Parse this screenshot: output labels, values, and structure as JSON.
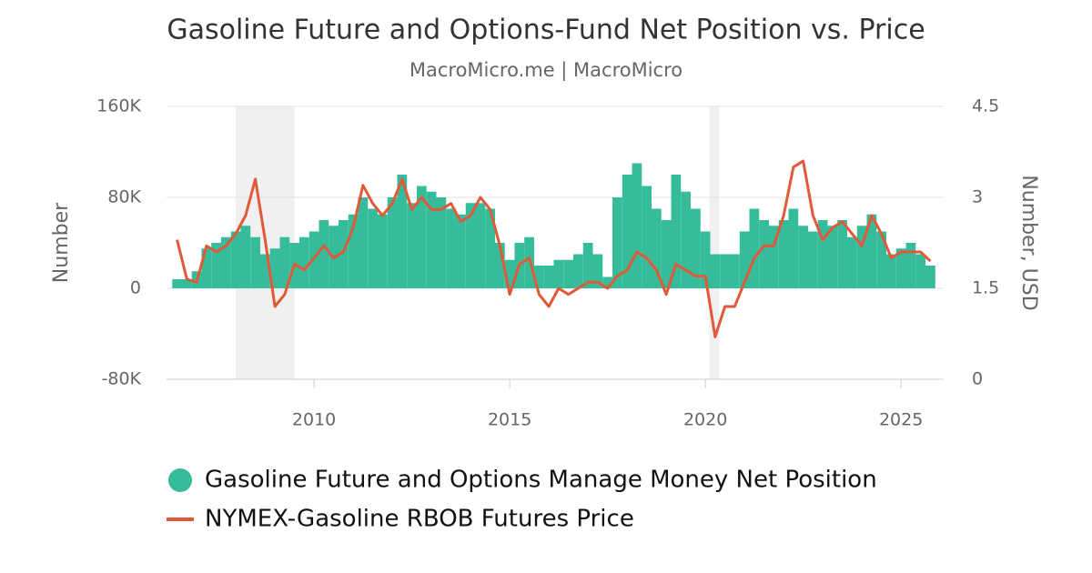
{
  "chart_data": {
    "type": "bar-line",
    "title": "Gasoline Future and Options-Fund Net Position vs. Price",
    "subtitle": "MacroMicro.me | MacroMicro",
    "y_label": "Number",
    "y2_label": "Number, USD",
    "xlim": [
      2006.23,
      2026.09
    ],
    "xticks": [
      2010,
      2015,
      2020,
      2025
    ],
    "ylim": [
      -80000,
      160000
    ],
    "yticks": [
      {
        "value": -80000,
        "label": "-80K"
      },
      0,
      {
        "value": 80000,
        "label": "80K"
      },
      {
        "value": 160000,
        "label": "160K"
      }
    ],
    "y2lim": [
      0,
      4.5
    ],
    "y2ticks": [
      0,
      1.5,
      3,
      4.5
    ],
    "grid": true,
    "shaded_regions": [
      {
        "x0": 2008.0,
        "x1": 2009.5
      },
      {
        "x0": 2020.1,
        "x1": 2020.35
      }
    ],
    "x": [
      2006.5,
      2006.75,
      2007.0,
      2007.25,
      2007.5,
      2007.75,
      2008.0,
      2008.25,
      2008.5,
      2008.75,
      2009.0,
      2009.25,
      2009.5,
      2009.75,
      2010.0,
      2010.25,
      2010.5,
      2010.75,
      2011.0,
      2011.25,
      2011.5,
      2011.75,
      2012.0,
      2012.25,
      2012.5,
      2012.75,
      2013.0,
      2013.25,
      2013.5,
      2013.75,
      2014.0,
      2014.25,
      2014.5,
      2014.75,
      2015.0,
      2015.25,
      2015.5,
      2015.75,
      2016.0,
      2016.25,
      2016.5,
      2016.75,
      2017.0,
      2017.25,
      2017.5,
      2017.75,
      2018.0,
      2018.25,
      2018.5,
      2018.75,
      2019.0,
      2019.25,
      2019.5,
      2019.75,
      2020.0,
      2020.25,
      2020.5,
      2020.75,
      2021.0,
      2021.25,
      2021.5,
      2021.75,
      2022.0,
      2022.25,
      2022.5,
      2022.75,
      2023.0,
      2023.25,
      2023.5,
      2023.75,
      2024.0,
      2024.25,
      2024.5,
      2024.75,
      2025.0,
      2025.25,
      2025.5,
      2025.75
    ],
    "series": [
      {
        "name": "Gasoline Future and Options Manage Money Net Position",
        "type": "bar",
        "color": "#36bc9b",
        "values": [
          8000,
          8000,
          15000,
          35000,
          40000,
          45000,
          50000,
          55000,
          45000,
          30000,
          35000,
          45000,
          40000,
          45000,
          50000,
          60000,
          55000,
          60000,
          65000,
          80000,
          70000,
          65000,
          80000,
          100000,
          75000,
          90000,
          85000,
          80000,
          70000,
          65000,
          75000,
          75000,
          70000,
          40000,
          25000,
          40000,
          45000,
          20000,
          20000,
          25000,
          25000,
          30000,
          40000,
          30000,
          10000,
          80000,
          100000,
          110000,
          90000,
          70000,
          60000,
          100000,
          85000,
          70000,
          50000,
          30000,
          30000,
          30000,
          50000,
          70000,
          60000,
          55000,
          60000,
          70000,
          55000,
          50000,
          60000,
          55000,
          60000,
          45000,
          55000,
          65000,
          50000,
          30000,
          35000,
          40000,
          30000,
          20000
        ]
      },
      {
        "name": "NYMEX-Gasoline RBOB Futures Price",
        "type": "line",
        "axis": "y2",
        "color": "#e05a3a",
        "values": [
          2.3,
          1.65,
          1.6,
          2.2,
          2.1,
          2.2,
          2.4,
          2.7,
          3.3,
          2.3,
          1.2,
          1.4,
          1.9,
          1.8,
          2.0,
          2.2,
          2.0,
          2.1,
          2.5,
          3.2,
          2.9,
          2.7,
          2.9,
          3.3,
          2.8,
          3.0,
          2.8,
          2.8,
          2.9,
          2.6,
          2.7,
          3.0,
          2.8,
          2.2,
          1.4,
          1.9,
          2.0,
          1.4,
          1.2,
          1.5,
          1.4,
          1.5,
          1.6,
          1.6,
          1.5,
          1.7,
          1.8,
          2.1,
          2.0,
          1.8,
          1.4,
          1.9,
          1.8,
          1.7,
          1.7,
          0.7,
          1.2,
          1.2,
          1.6,
          2.0,
          2.2,
          2.2,
          2.7,
          3.5,
          3.6,
          2.7,
          2.3,
          2.5,
          2.6,
          2.4,
          2.2,
          2.7,
          2.4,
          2.0,
          2.1,
          2.1,
          2.1,
          1.95
        ]
      }
    ]
  }
}
